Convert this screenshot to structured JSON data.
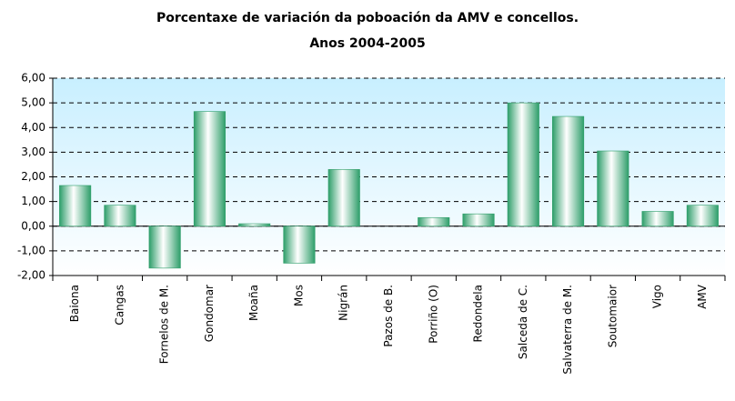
{
  "chart_data": {
    "type": "bar",
    "title": "Porcentaxe de variación da poboación da AMV e concellos.",
    "subtitle": "Anos 2004-2005",
    "categories": [
      "Baiona",
      "Cangas",
      "Fornelos de M.",
      "Gondomar",
      "Moaña",
      "Mos",
      "Nigrán",
      "Pazos de B.",
      "Porriño (O)",
      "Redondela",
      "Salceda de C.",
      "Salvaterra de M.",
      "Soutomaior",
      "Vigo",
      "AMV"
    ],
    "values": [
      1.65,
      0.85,
      -1.7,
      4.65,
      0.1,
      -1.5,
      2.3,
      0,
      0.35,
      0.5,
      5.0,
      4.45,
      3.05,
      0.6,
      0.85
    ],
    "color": "#2e9e6a",
    "ylim": [
      -2,
      6
    ],
    "yticks": [
      {
        "value": -2,
        "label": "-2,00"
      },
      {
        "value": -1,
        "label": "-1,00"
      },
      {
        "value": 0,
        "label": "0,00"
      },
      {
        "value": 1,
        "label": "1,00"
      },
      {
        "value": 2,
        "label": "2,00"
      },
      {
        "value": 3,
        "label": "3,00"
      },
      {
        "value": 4,
        "label": "4,00"
      },
      {
        "value": 5,
        "label": "5,00"
      },
      {
        "value": 6,
        "label": "6,00"
      }
    ],
    "grid": true
  }
}
